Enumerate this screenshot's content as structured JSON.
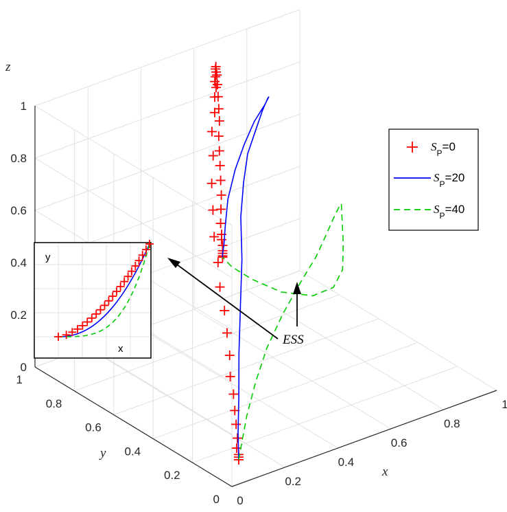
{
  "chart_data": {
    "type": "line",
    "projection": "3d",
    "axes": {
      "x": {
        "label": "x",
        "range": [
          0,
          1
        ],
        "ticks": [
          "0",
          "0.2",
          "0.4",
          "0.6",
          "0.8",
          "1"
        ]
      },
      "y": {
        "label": "y",
        "range": [
          0,
          1
        ],
        "ticks": [
          "0",
          "0.2",
          "0.4",
          "0.6",
          "0.8",
          "1"
        ]
      },
      "z": {
        "label": "z",
        "range": [
          0,
          1
        ],
        "ticks": [
          "0",
          "0.2",
          "0.4",
          "0.6",
          "0.8",
          "1"
        ]
      }
    },
    "grid": true,
    "legend_position": "right",
    "series": [
      {
        "name_main": "S",
        "name_sub": "P",
        "name_rest": "=0",
        "style": "markers-plus",
        "color": "#ff0000",
        "points": [
          [
            0.1,
            0.1,
            0.02
          ],
          [
            0.1,
            0.1,
            0.03
          ],
          [
            0.1,
            0.1,
            0.04
          ],
          [
            0.1,
            0.11,
            0.06
          ],
          [
            0.11,
            0.12,
            0.09
          ],
          [
            0.12,
            0.14,
            0.13
          ],
          [
            0.13,
            0.16,
            0.17
          ],
          [
            0.14,
            0.18,
            0.22
          ],
          [
            0.15,
            0.21,
            0.27
          ],
          [
            0.17,
            0.24,
            0.33
          ],
          [
            0.19,
            0.28,
            0.39
          ],
          [
            0.21,
            0.32,
            0.45
          ],
          [
            0.23,
            0.37,
            0.51
          ],
          [
            0.26,
            0.42,
            0.57
          ],
          [
            0.29,
            0.48,
            0.63
          ],
          [
            0.33,
            0.54,
            0.69
          ],
          [
            0.37,
            0.6,
            0.75
          ],
          [
            0.42,
            0.66,
            0.81
          ],
          [
            0.46,
            0.72,
            0.86
          ],
          [
            0.5,
            0.76,
            0.9
          ],
          [
            0.53,
            0.8,
            0.93
          ],
          [
            0.55,
            0.82,
            0.95
          ],
          [
            0.56,
            0.84,
            0.96
          ],
          [
            0.57,
            0.85,
            0.97
          ],
          [
            0.58,
            0.86,
            0.98
          ],
          [
            0.585,
            0.87,
            0.985
          ],
          [
            0.59,
            0.875,
            0.99
          ],
          [
            0.59,
            0.87,
            0.96
          ],
          [
            0.585,
            0.86,
            0.93
          ],
          [
            0.58,
            0.85,
            0.89
          ],
          [
            0.575,
            0.84,
            0.85
          ],
          [
            0.57,
            0.83,
            0.81
          ],
          [
            0.56,
            0.82,
            0.76
          ],
          [
            0.555,
            0.81,
            0.71
          ],
          [
            0.55,
            0.8,
            0.66
          ],
          [
            0.545,
            0.79,
            0.61
          ],
          [
            0.54,
            0.78,
            0.56
          ],
          [
            0.535,
            0.775,
            0.51
          ],
          [
            0.53,
            0.77,
            0.46
          ],
          [
            0.53,
            0.765,
            0.42
          ],
          [
            0.53,
            0.765,
            0.4
          ],
          [
            0.53,
            0.76,
            0.38
          ],
          [
            0.53,
            0.76,
            0.36
          ],
          [
            0.53,
            0.76,
            0.35
          ],
          [
            0.53,
            0.76,
            0.34
          ],
          [
            0.53,
            0.76,
            0.335
          ]
        ]
      },
      {
        "name_main": "S",
        "name_sub": "P",
        "name_rest": "=20",
        "style": "solid",
        "color": "#0000ff",
        "points": [
          [
            0.1,
            0.1,
            0.02
          ],
          [
            0.12,
            0.13,
            0.1
          ],
          [
            0.16,
            0.18,
            0.2
          ],
          [
            0.22,
            0.26,
            0.31
          ],
          [
            0.3,
            0.36,
            0.42
          ],
          [
            0.38,
            0.46,
            0.52
          ],
          [
            0.45,
            0.56,
            0.61
          ],
          [
            0.52,
            0.64,
            0.68
          ],
          [
            0.58,
            0.7,
            0.74
          ],
          [
            0.64,
            0.74,
            0.79
          ],
          [
            0.68,
            0.76,
            0.84
          ],
          [
            0.7,
            0.76,
            0.88
          ],
          [
            0.69,
            0.74,
            0.9
          ],
          [
            0.66,
            0.72,
            0.89
          ],
          [
            0.62,
            0.72,
            0.84
          ],
          [
            0.59,
            0.73,
            0.76
          ],
          [
            0.57,
            0.75,
            0.66
          ],
          [
            0.55,
            0.76,
            0.55
          ],
          [
            0.54,
            0.76,
            0.45
          ],
          [
            0.535,
            0.76,
            0.38
          ],
          [
            0.53,
            0.76,
            0.35
          ],
          [
            0.53,
            0.76,
            0.335
          ]
        ]
      },
      {
        "name_main": "S",
        "name_sub": "P",
        "name_rest": "=40",
        "style": "dashed",
        "color": "#00cc00",
        "points": [
          [
            0.1,
            0.1,
            0.02
          ],
          [
            0.15,
            0.15,
            0.05
          ],
          [
            0.22,
            0.22,
            0.09
          ],
          [
            0.32,
            0.31,
            0.14
          ],
          [
            0.43,
            0.4,
            0.19
          ],
          [
            0.55,
            0.48,
            0.24
          ],
          [
            0.66,
            0.54,
            0.29
          ],
          [
            0.75,
            0.58,
            0.34
          ],
          [
            0.8,
            0.6,
            0.39
          ],
          [
            0.82,
            0.59,
            0.45
          ],
          [
            0.82,
            0.56,
            0.51
          ],
          [
            0.8,
            0.52,
            0.55
          ],
          [
            0.78,
            0.49,
            0.52
          ],
          [
            0.77,
            0.47,
            0.43
          ],
          [
            0.76,
            0.46,
            0.34
          ],
          [
            0.74,
            0.48,
            0.27
          ],
          [
            0.7,
            0.53,
            0.23
          ],
          [
            0.64,
            0.61,
            0.23
          ],
          [
            0.59,
            0.69,
            0.26
          ],
          [
            0.55,
            0.74,
            0.3
          ],
          [
            0.53,
            0.76,
            0.335
          ]
        ]
      }
    ],
    "annotations": [
      {
        "text": "ESS",
        "target": "equilibrium point"
      }
    ],
    "inset": {
      "xlabel": "x",
      "ylabel": "y"
    }
  }
}
